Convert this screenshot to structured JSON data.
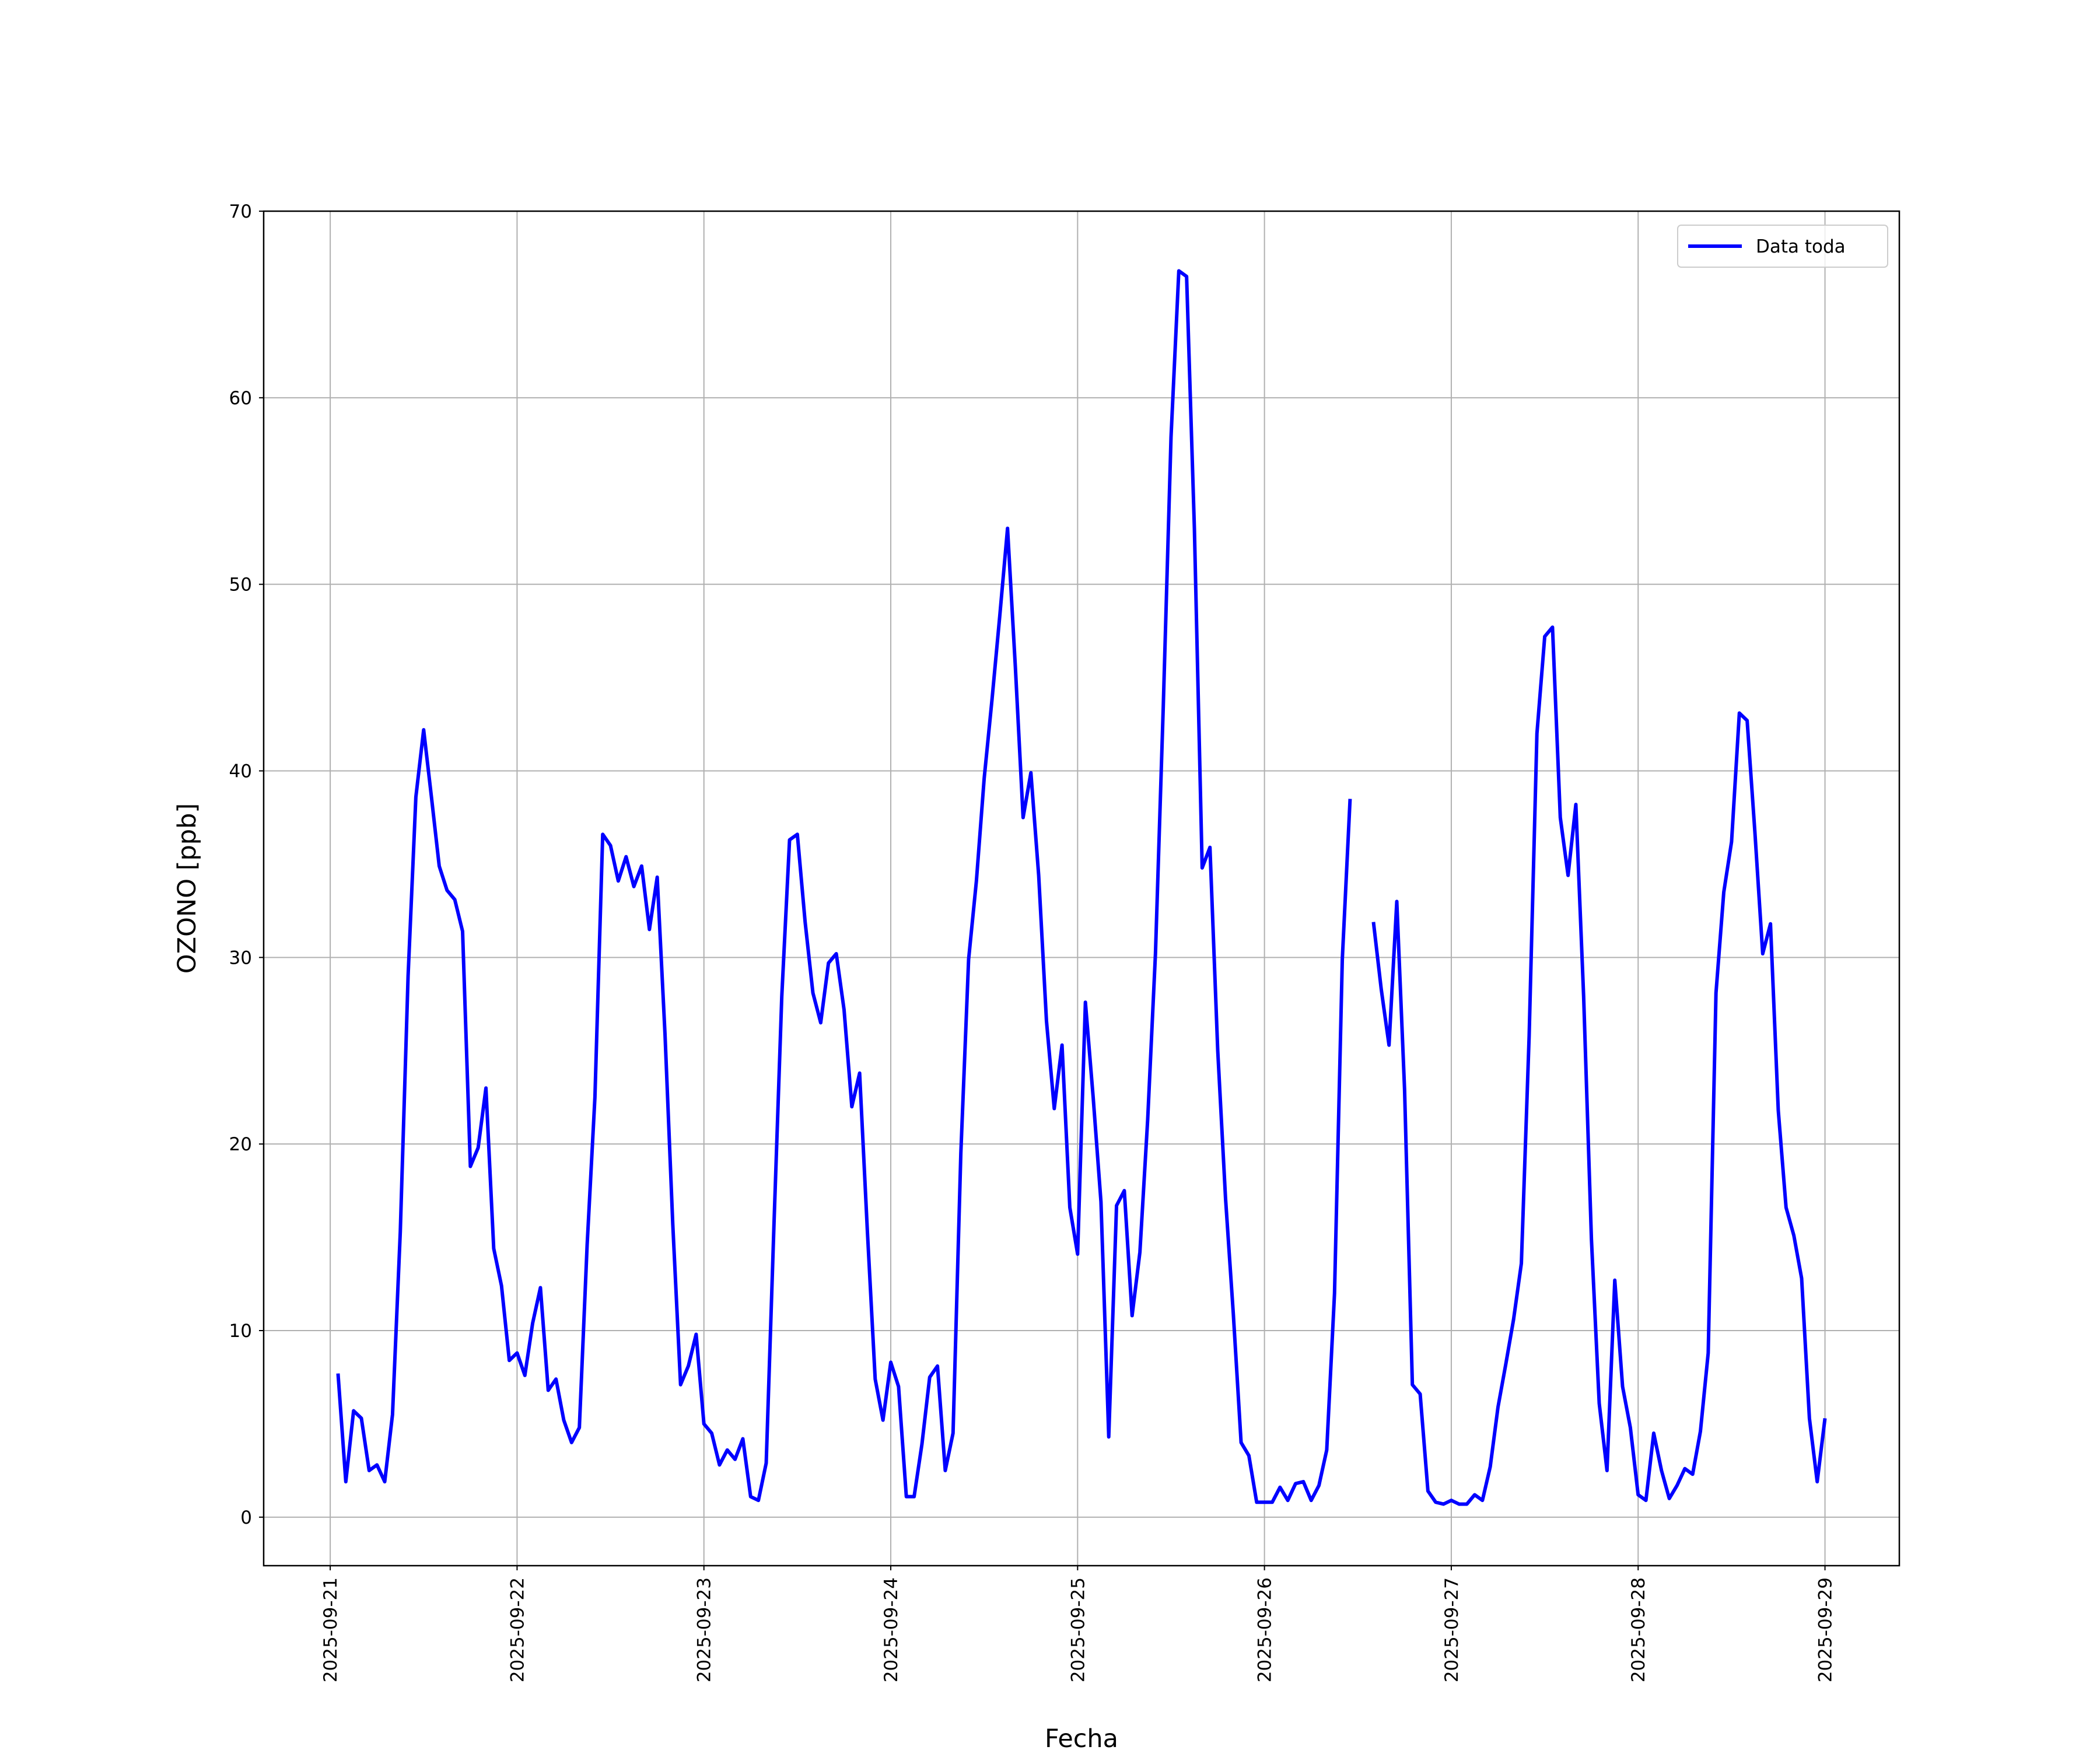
{
  "chart_data": {
    "type": "line",
    "xlabel": "Fecha",
    "ylabel": "OZONO [ppb]",
    "x": [
      "2025-09-21 01:00",
      "2025-09-21 02:00",
      "2025-09-21 03:00",
      "2025-09-21 04:00",
      "2025-09-21 05:00",
      "2025-09-21 06:00",
      "2025-09-21 07:00",
      "2025-09-21 08:00",
      "2025-09-21 09:00",
      "2025-09-21 10:00",
      "2025-09-21 11:00",
      "2025-09-21 12:00",
      "2025-09-21 13:00",
      "2025-09-21 14:00",
      "2025-09-21 15:00",
      "2025-09-21 16:00",
      "2025-09-21 17:00",
      "2025-09-21 18:00",
      "2025-09-21 19:00",
      "2025-09-21 20:00",
      "2025-09-21 21:00",
      "2025-09-21 22:00",
      "2025-09-21 23:00",
      "2025-09-22 00:00",
      "2025-09-22 01:00",
      "2025-09-22 02:00",
      "2025-09-22 03:00",
      "2025-09-22 04:00",
      "2025-09-22 05:00",
      "2025-09-22 06:00",
      "2025-09-22 07:00",
      "2025-09-22 08:00",
      "2025-09-22 09:00",
      "2025-09-22 10:00",
      "2025-09-22 11:00",
      "2025-09-22 12:00",
      "2025-09-22 13:00",
      "2025-09-22 14:00",
      "2025-09-22 15:00",
      "2025-09-22 16:00",
      "2025-09-22 17:00",
      "2025-09-22 18:00",
      "2025-09-22 19:00",
      "2025-09-22 20:00",
      "2025-09-22 21:00",
      "2025-09-22 22:00",
      "2025-09-22 23:00",
      "2025-09-23 00:00",
      "2025-09-23 01:00",
      "2025-09-23 02:00",
      "2025-09-23 03:00",
      "2025-09-23 04:00",
      "2025-09-23 05:00",
      "2025-09-23 06:00",
      "2025-09-23 07:00",
      "2025-09-23 08:00",
      "2025-09-23 09:00",
      "2025-09-23 10:00",
      "2025-09-23 11:00",
      "2025-09-23 12:00",
      "2025-09-23 13:00",
      "2025-09-23 14:00",
      "2025-09-23 15:00",
      "2025-09-23 16:00",
      "2025-09-23 17:00",
      "2025-09-23 18:00",
      "2025-09-23 19:00",
      "2025-09-23 20:00",
      "2025-09-23 21:00",
      "2025-09-23 22:00",
      "2025-09-23 23:00",
      "2025-09-24 00:00",
      "2025-09-24 01:00",
      "2025-09-24 02:00",
      "2025-09-24 03:00",
      "2025-09-24 04:00",
      "2025-09-24 05:00",
      "2025-09-24 06:00",
      "2025-09-24 07:00",
      "2025-09-24 08:00",
      "2025-09-24 09:00",
      "2025-09-24 10:00",
      "2025-09-24 11:00",
      "2025-09-24 12:00",
      "2025-09-24 13:00",
      "2025-09-24 14:00",
      "2025-09-24 15:00",
      "2025-09-24 16:00",
      "2025-09-24 17:00",
      "2025-09-24 18:00",
      "2025-09-24 19:00",
      "2025-09-24 20:00",
      "2025-09-24 21:00",
      "2025-09-24 22:00",
      "2025-09-24 23:00",
      "2025-09-25 00:00",
      "2025-09-25 01:00",
      "2025-09-25 02:00",
      "2025-09-25 03:00",
      "2025-09-25 04:00",
      "2025-09-25 05:00",
      "2025-09-25 06:00",
      "2025-09-25 07:00",
      "2025-09-25 08:00",
      "2025-09-25 09:00",
      "2025-09-25 10:00",
      "2025-09-25 11:00",
      "2025-09-25 12:00",
      "2025-09-25 13:00",
      "2025-09-25 14:00",
      "2025-09-25 15:00",
      "2025-09-25 16:00",
      "2025-09-25 17:00",
      "2025-09-25 18:00",
      "2025-09-25 19:00",
      "2025-09-25 20:00",
      "2025-09-25 21:00",
      "2025-09-25 22:00",
      "2025-09-25 23:00",
      "2025-09-26 00:00",
      "2025-09-26 01:00",
      "2025-09-26 02:00",
      "2025-09-26 03:00",
      "2025-09-26 04:00",
      "2025-09-26 05:00",
      "2025-09-26 06:00",
      "2025-09-26 07:00",
      "2025-09-26 08:00",
      "2025-09-26 09:00",
      "2025-09-26 10:00",
      "2025-09-26 11:00",
      "2025-09-26 12:00",
      "2025-09-26 13:00",
      "2025-09-26 14:00",
      "2025-09-26 15:00",
      "2025-09-26 16:00",
      "2025-09-26 17:00",
      "2025-09-26 18:00",
      "2025-09-26 19:00",
      "2025-09-26 20:00",
      "2025-09-26 21:00",
      "2025-09-26 22:00",
      "2025-09-26 23:00",
      "2025-09-27 00:00",
      "2025-09-27 01:00",
      "2025-09-27 02:00",
      "2025-09-27 03:00",
      "2025-09-27 04:00",
      "2025-09-27 05:00",
      "2025-09-27 06:00",
      "2025-09-27 07:00",
      "2025-09-27 08:00",
      "2025-09-27 09:00",
      "2025-09-27 10:00",
      "2025-09-27 11:00",
      "2025-09-27 12:00",
      "2025-09-27 13:00",
      "2025-09-27 14:00",
      "2025-09-27 15:00",
      "2025-09-27 16:00",
      "2025-09-27 17:00",
      "2025-09-27 18:00",
      "2025-09-27 19:00",
      "2025-09-27 20:00",
      "2025-09-27 21:00",
      "2025-09-27 22:00",
      "2025-09-27 23:00",
      "2025-09-28 00:00",
      "2025-09-28 01:00",
      "2025-09-28 02:00",
      "2025-09-28 03:00",
      "2025-09-28 04:00",
      "2025-09-28 05:00",
      "2025-09-28 06:00",
      "2025-09-28 07:00",
      "2025-09-28 08:00",
      "2025-09-28 09:00",
      "2025-09-28 10:00",
      "2025-09-28 11:00",
      "2025-09-28 12:00",
      "2025-09-28 13:00",
      "2025-09-28 14:00",
      "2025-09-28 15:00",
      "2025-09-28 16:00",
      "2025-09-28 17:00",
      "2025-09-28 18:00",
      "2025-09-28 19:00",
      "2025-09-28 20:00",
      "2025-09-28 21:00",
      "2025-09-28 22:00",
      "2025-09-28 23:00",
      "2025-09-29 00:00"
    ],
    "series": [
      {
        "name": "Data toda",
        "color": "#0000ff",
        "values": [
          7.7,
          1.9,
          5.7,
          5.3,
          2.5,
          2.8,
          1.9,
          5.5,
          15.3,
          29,
          38.6,
          42.2,
          38.6,
          34.9,
          33.6,
          33.1,
          31.4,
          18.8,
          19.8,
          23,
          14.4,
          12.4,
          8.4,
          8.8,
          7.6,
          10.4,
          12.3,
          6.8,
          7.4,
          5.2,
          4,
          4.8,
          14.6,
          22.5,
          36.6,
          36,
          34.1,
          35.4,
          33.8,
          34.9,
          31.5,
          34.3,
          25.9,
          15.7,
          7.1,
          8.1,
          9.8,
          5,
          4.5,
          2.8,
          3.6,
          3.1,
          4.2,
          1.1,
          0.9,
          2.9,
          15.7,
          27.9,
          36.3,
          36.6,
          31.9,
          28.1,
          26.5,
          29.7,
          30.2,
          27.2,
          22,
          23.8,
          15.3,
          7.4,
          5.2,
          8.3,
          7,
          1.1,
          1.1,
          3.9,
          7.5,
          8.1,
          2.5,
          4.5,
          19.5,
          29.9,
          34.1,
          39.6,
          43.8,
          48.3,
          53,
          45.6,
          37.5,
          39.9,
          34.4,
          26.6,
          21.9,
          25.3,
          16.6,
          14.1,
          27.6,
          22.5,
          16.9,
          4.3,
          16.7,
          17.5,
          10.8,
          14.2,
          21.3,
          30.2,
          43.4,
          57.9,
          66.8,
          66.5,
          53,
          34.8,
          35.9,
          25,
          17.1,
          10.9,
          4,
          3.3,
          0.8,
          0.8,
          0.8,
          1.6,
          0.9,
          1.8,
          1.9,
          0.9,
          1.7,
          3.6,
          12,
          29.9,
          38.5,
          null,
          null,
          31.9,
          28.3,
          25.3,
          33,
          22.9,
          7.1,
          6.6,
          1.4,
          0.8,
          0.7,
          0.9,
          0.7,
          0.7,
          1.2,
          0.9,
          2.7,
          5.9,
          8.2,
          10.6,
          13.6,
          25.8,
          42,
          47.2,
          47.7,
          37.5,
          34.4,
          38.2,
          27.9,
          14.9,
          6.1,
          2.5,
          12.7,
          7,
          4.8,
          1.2,
          0.9,
          4.5,
          2.5,
          1,
          1.7,
          2.6,
          2.3,
          4.6,
          8.8,
          28.1,
          33.5,
          36.2,
          43.1,
          42.7,
          36.7,
          30.2,
          31.8,
          21.8,
          16.6,
          15.1,
          12.8,
          5.3,
          1.9,
          5.3
        ]
      }
    ],
    "xlim": [
      "2025-09-20 15:27",
      "2025-09-29 09:33"
    ],
    "xticks": [
      "2025-09-21",
      "2025-09-22",
      "2025-09-23",
      "2025-09-24",
      "2025-09-25",
      "2025-09-26",
      "2025-09-27",
      "2025-09-28",
      "2025-09-29"
    ],
    "ylim": [
      -2.6,
      70
    ],
    "yticks": [
      0,
      10,
      20,
      30,
      40,
      50,
      60,
      70
    ],
    "grid": true,
    "legend": "upper right"
  }
}
